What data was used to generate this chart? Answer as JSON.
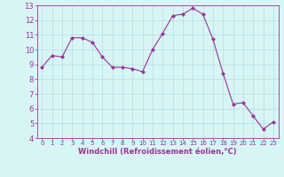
{
  "x": [
    0,
    1,
    2,
    3,
    4,
    5,
    6,
    7,
    8,
    9,
    10,
    11,
    12,
    13,
    14,
    15,
    16,
    17,
    18,
    19,
    20,
    21,
    22,
    23
  ],
  "y": [
    8.8,
    9.6,
    9.5,
    10.8,
    10.8,
    10.5,
    9.5,
    8.8,
    8.8,
    8.7,
    8.5,
    10.0,
    11.1,
    12.3,
    12.4,
    12.8,
    12.4,
    10.7,
    8.4,
    6.3,
    6.4,
    5.5,
    4.6,
    5.1
  ],
  "line_color": "#993399",
  "marker": "D",
  "marker_size": 2,
  "bg_color": "#d8f5f5",
  "grid_color": "#b0dede",
  "xlabel": "Windchill (Refroidissement éolien,°C)",
  "xlabel_color": "#993399",
  "tick_color": "#993399",
  "spine_color": "#993399",
  "xlim": [
    -0.5,
    23.5
  ],
  "ylim": [
    4,
    13
  ],
  "yticks": [
    4,
    5,
    6,
    7,
    8,
    9,
    10,
    11,
    12,
    13
  ],
  "xticks": [
    0,
    1,
    2,
    3,
    4,
    5,
    6,
    7,
    8,
    9,
    10,
    11,
    12,
    13,
    14,
    15,
    16,
    17,
    18,
    19,
    20,
    21,
    22,
    23
  ],
  "xlabel_fontsize": 6.0,
  "tick_fontsize_x": 5.0,
  "tick_fontsize_y": 6.0
}
